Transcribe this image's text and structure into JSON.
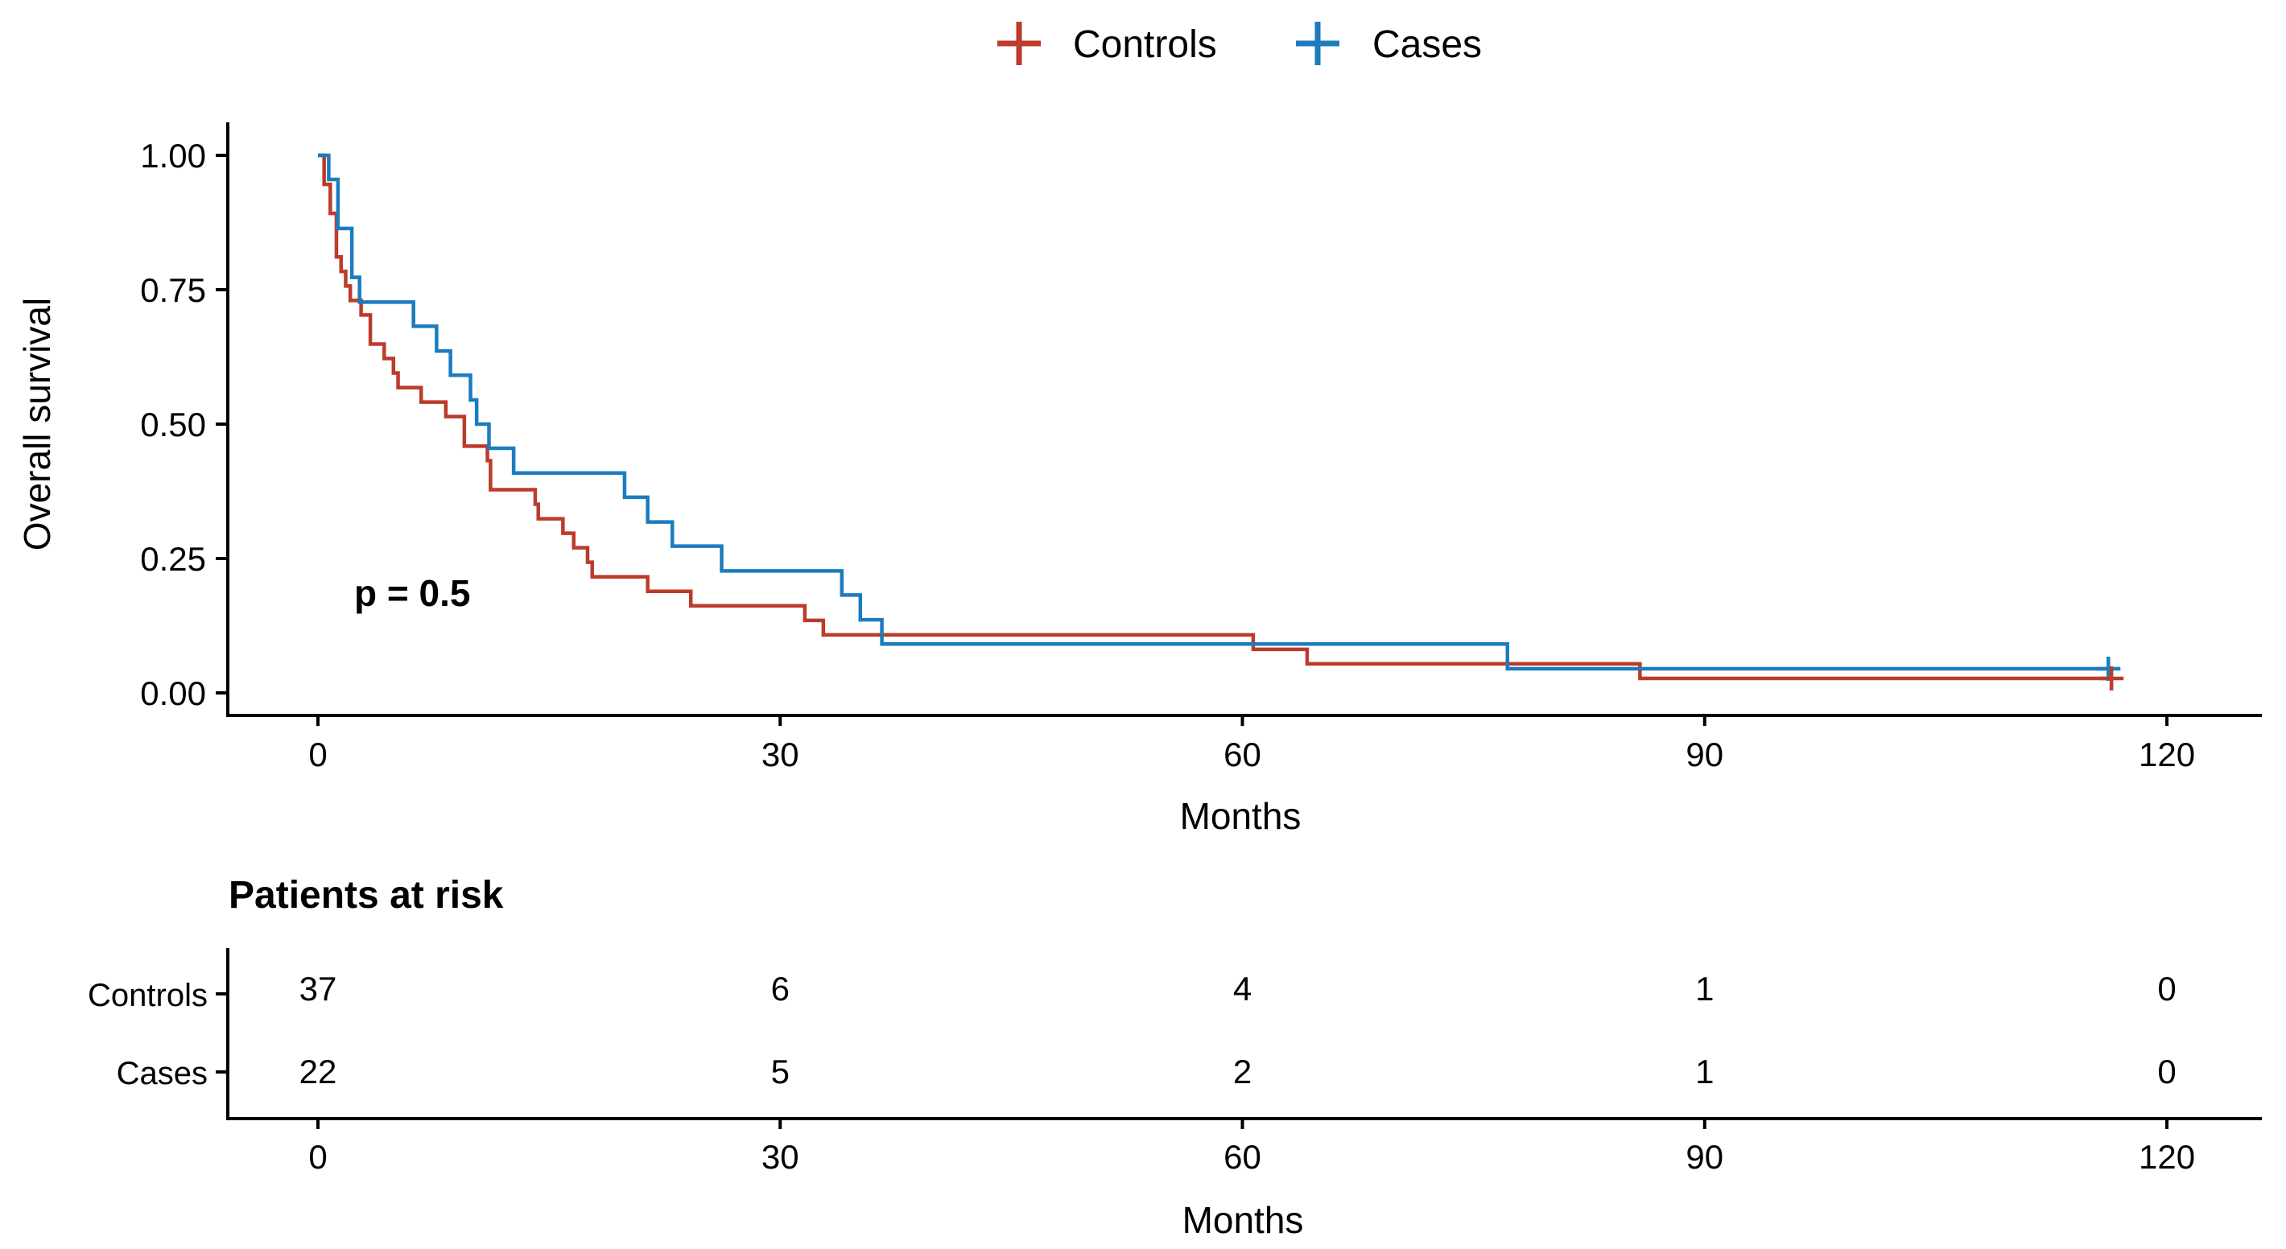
{
  "chart_data": {
    "type": "line",
    "subtype": "kaplan-meier-step-curve",
    "xlabel": "Months",
    "ylabel": "Overall survival",
    "annotation": "p = 0.5",
    "xlim": [
      0,
      126
    ],
    "ylim": [
      0,
      1
    ],
    "x_ticks": [
      0,
      30,
      60,
      90,
      120
    ],
    "y_ticks": [
      {
        "v": 0.0,
        "label": "0.00"
      },
      {
        "v": 0.25,
        "label": "0.25"
      },
      {
        "v": 0.5,
        "label": "0.50"
      },
      {
        "v": 0.75,
        "label": "0.75"
      },
      {
        "v": 1.0,
        "label": "1.00"
      }
    ],
    "grid": false,
    "legend_position": "top",
    "series": [
      {
        "name": "Controls",
        "color": "#BC3B2A",
        "n_at_start": 37,
        "end_time": 116.4,
        "end_censored": true,
        "steps": [
          [
            0,
            1.0
          ],
          [
            0.4,
            0.946
          ],
          [
            0.8,
            0.892
          ],
          [
            1.2,
            0.811
          ],
          [
            1.5,
            0.784
          ],
          [
            1.8,
            0.757
          ],
          [
            2.1,
            0.73
          ],
          [
            2.8,
            0.703
          ],
          [
            3.4,
            0.649
          ],
          [
            4.3,
            0.622
          ],
          [
            4.9,
            0.595
          ],
          [
            5.2,
            0.568
          ],
          [
            6.7,
            0.541
          ],
          [
            8.3,
            0.514
          ],
          [
            9.5,
            0.459
          ],
          [
            11.0,
            0.432
          ],
          [
            11.2,
            0.378
          ],
          [
            14.1,
            0.351
          ],
          [
            14.3,
            0.324
          ],
          [
            15.9,
            0.297
          ],
          [
            16.6,
            0.27
          ],
          [
            17.5,
            0.243
          ],
          [
            17.8,
            0.216
          ],
          [
            21.4,
            0.189
          ],
          [
            24.2,
            0.162
          ],
          [
            31.6,
            0.135
          ],
          [
            32.8,
            0.108
          ],
          [
            60.7,
            0.081
          ],
          [
            64.2,
            0.054
          ],
          [
            85.8,
            0.027
          ]
        ]
      },
      {
        "name": "Cases",
        "color": "#1B7CBE",
        "n_at_start": 22,
        "end_time": 116.2,
        "end_censored": true,
        "steps": [
          [
            0,
            1.0
          ],
          [
            0.7,
            0.955
          ],
          [
            1.3,
            0.864
          ],
          [
            2.2,
            0.773
          ],
          [
            2.7,
            0.727
          ],
          [
            6.2,
            0.682
          ],
          [
            7.7,
            0.636
          ],
          [
            8.6,
            0.591
          ],
          [
            9.9,
            0.545
          ],
          [
            10.3,
            0.5
          ],
          [
            11.1,
            0.455
          ],
          [
            12.7,
            0.409
          ],
          [
            19.9,
            0.364
          ],
          [
            21.4,
            0.318
          ],
          [
            23.0,
            0.273
          ],
          [
            26.2,
            0.227
          ],
          [
            34.0,
            0.182
          ],
          [
            35.2,
            0.136
          ],
          [
            36.6,
            0.091
          ],
          [
            77.2,
            0.045
          ]
        ]
      }
    ],
    "risk_table": {
      "title": "Patients at risk",
      "xlabel": "Months",
      "time_points": [
        0,
        30,
        60,
        90,
        120
      ],
      "rows": [
        {
          "label": "Controls",
          "color": "#BC3B2A",
          "counts": [
            37,
            6,
            4,
            1,
            0
          ]
        },
        {
          "label": "Cases",
          "color": "#1B7CBE",
          "counts": [
            22,
            5,
            2,
            1,
            0
          ]
        }
      ]
    }
  }
}
